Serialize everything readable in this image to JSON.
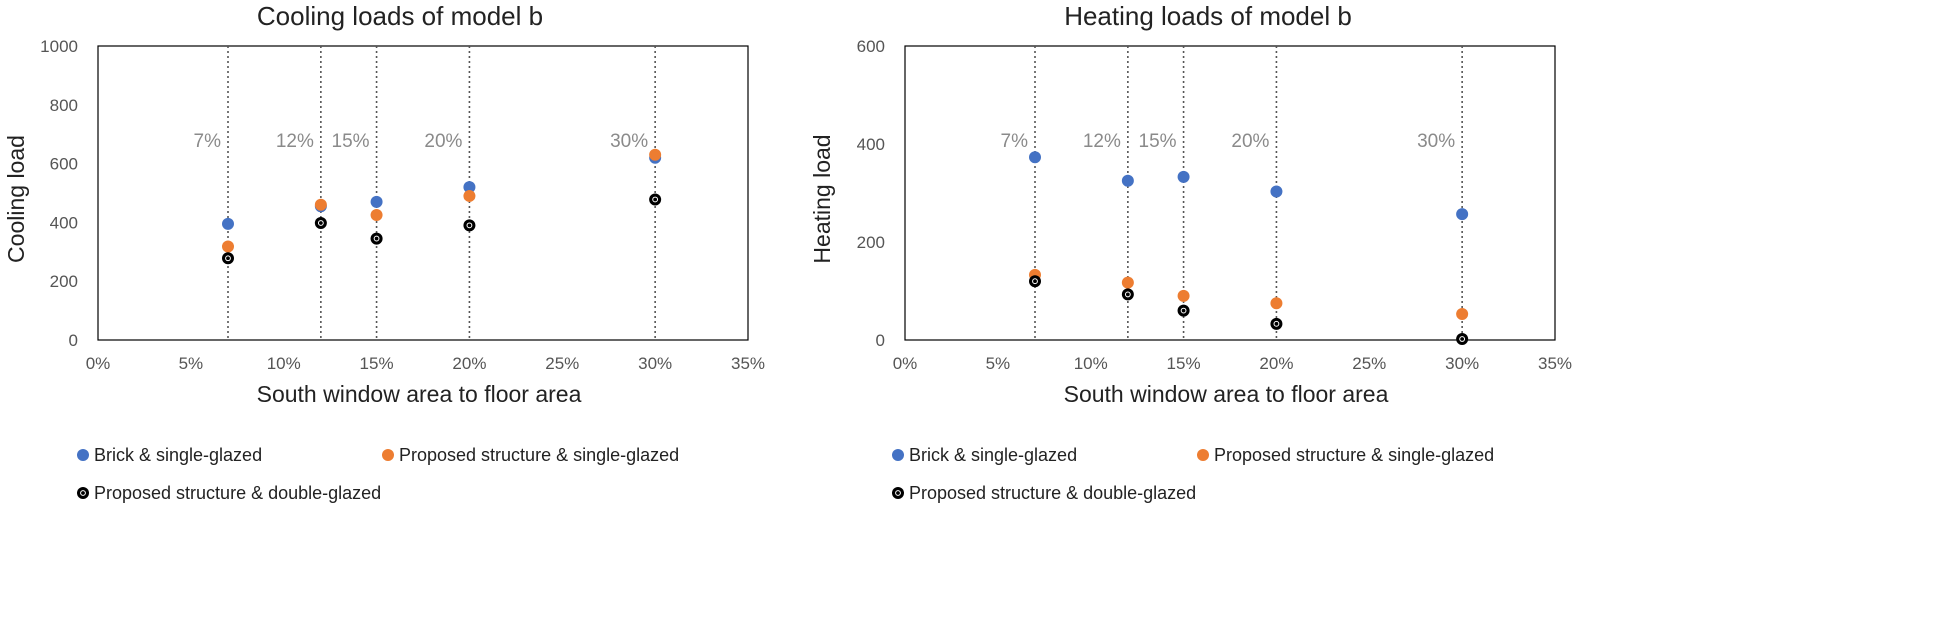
{
  "chart_data": [
    {
      "type": "scatter",
      "title": "Cooling loads of model b",
      "xlabel": "South window area to floor area",
      "ylabel": "Cooling load",
      "xlim": [
        0,
        35
      ],
      "ylim": [
        0,
        1000
      ],
      "x_ticks": [
        "0%",
        "5%",
        "10%",
        "15%",
        "20%",
        "25%",
        "30%",
        "35%"
      ],
      "y_ticks": [
        "0",
        "200",
        "400",
        "600",
        "800",
        "1000"
      ],
      "reference_lines": [
        {
          "x": 7,
          "label": "7%"
        },
        {
          "x": 12,
          "label": "12%"
        },
        {
          "x": 15,
          "label": "15%"
        },
        {
          "x": 20,
          "label": "20%"
        },
        {
          "x": 30,
          "label": "30%"
        }
      ],
      "series": [
        {
          "name": "Brick & single-glazed",
          "color": "#4472c4",
          "x": [
            7,
            12,
            15,
            20,
            30
          ],
          "values": [
            395,
            455,
            470,
            520,
            620
          ]
        },
        {
          "name": "Proposed structure & single-glazed",
          "color": "#ed7d31",
          "x": [
            7,
            12,
            15,
            20,
            30
          ],
          "values": [
            318,
            460,
            425,
            490,
            630
          ]
        },
        {
          "name": "Proposed structure & double-glazed",
          "color": "#000000",
          "x": [
            7,
            12,
            15,
            20,
            30
          ],
          "values": [
            278,
            398,
            345,
            390,
            478
          ]
        }
      ]
    },
    {
      "type": "scatter",
      "title": "Heating loads of model b",
      "xlabel": "South window area to floor area",
      "ylabel": "Heating load",
      "xlim": [
        0,
        35
      ],
      "ylim": [
        0,
        600
      ],
      "x_ticks": [
        "0%",
        "5%",
        "10%",
        "15%",
        "20%",
        "25%",
        "30%",
        "35%"
      ],
      "y_ticks": [
        "0",
        "200",
        "400",
        "600"
      ],
      "reference_lines": [
        {
          "x": 7,
          "label": "7%"
        },
        {
          "x": 12,
          "label": "12%"
        },
        {
          "x": 15,
          "label": "15%"
        },
        {
          "x": 20,
          "label": "20%"
        },
        {
          "x": 30,
          "label": "30%"
        }
      ],
      "series": [
        {
          "name": "Brick & single-glazed",
          "color": "#4472c4",
          "x": [
            7,
            12,
            15,
            20,
            30
          ],
          "values": [
            373,
            325,
            333,
            303,
            257
          ]
        },
        {
          "name": "Proposed structure & single-glazed",
          "color": "#ed7d31",
          "x": [
            7,
            12,
            15,
            20,
            30
          ],
          "values": [
            133,
            117,
            90,
            75,
            53
          ]
        },
        {
          "name": "Proposed structure & double-glazed",
          "color": "#000000",
          "x": [
            7,
            12,
            15,
            20,
            30
          ],
          "values": [
            120,
            93,
            60,
            33,
            2
          ]
        }
      ]
    }
  ]
}
